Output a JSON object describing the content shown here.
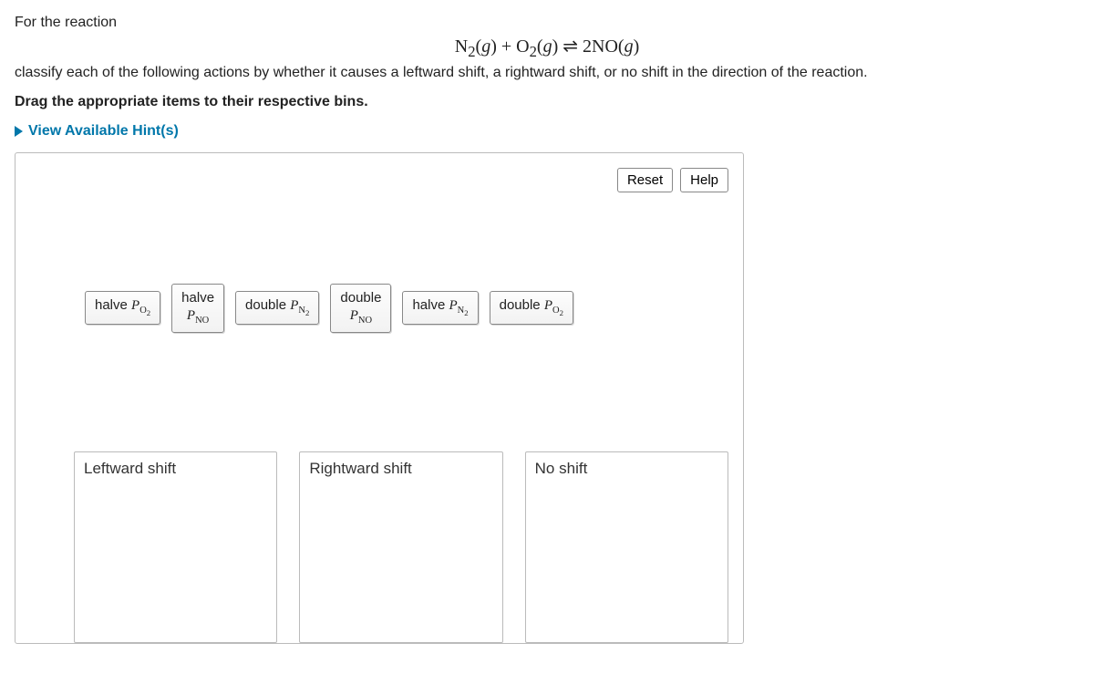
{
  "prompt": {
    "line1": "For the reaction",
    "equation_html": "N<sub>2</sub>(<i>g</i>) + O<sub>2</sub>(<i>g</i>) ⇌ 2NO(<i>g</i>)",
    "line2": "classify each of the following actions by whether it causes a leftward shift, a rightward shift, or no shift in the direction of the reaction.",
    "drag_instruction": "Drag the appropriate items to their respective bins."
  },
  "hints_link": "View Available Hint(s)",
  "buttons": {
    "reset": "Reset",
    "help": "Help"
  },
  "items": [
    {
      "id": "halve-po2",
      "html": "halve <span class='italic'>P</span><span class='sub'>O<sub>2</sub></span>"
    },
    {
      "id": "halve-pno",
      "html": "halve<br><span class='italic'>P</span><span class='sub'>NO</span>"
    },
    {
      "id": "double-pn2",
      "html": "double <span class='italic'>P</span><span class='sub'>N<sub>2</sub></span>"
    },
    {
      "id": "double-pno",
      "html": "double<br><span class='italic'>P</span><span class='sub'>NO</span>"
    },
    {
      "id": "halve-pn2",
      "html": "halve <span class='italic'>P</span><span class='sub'>N<sub>2</sub></span>"
    },
    {
      "id": "double-po2",
      "html": "double <span class='italic'>P</span><span class='sub'>O<sub>2</sub></span>"
    }
  ],
  "bins": [
    {
      "id": "leftward",
      "label": "Leftward shift"
    },
    {
      "id": "rightward",
      "label": "Rightward shift"
    },
    {
      "id": "noshift",
      "label": "No shift"
    }
  ],
  "colors": {
    "link": "#0077aa",
    "border": "#bbbbbb",
    "chip_border": "#888888",
    "text": "#222222"
  }
}
